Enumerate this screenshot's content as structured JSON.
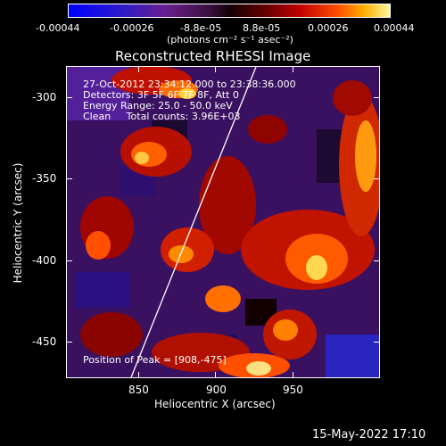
{
  "colorbar": {
    "ticks": [
      "-0.00044",
      "-0.00026",
      "-8.8e-05",
      "8.8e-05",
      "0.00026",
      "0.00044"
    ],
    "units": "(photons cm⁻² s⁻¹ asec⁻²)"
  },
  "title": "Reconstructed RHESSI Image",
  "info": {
    "line1": "27-Oct-2012 23:34:12.000 to 23:38:36.000",
    "line2": "Detectors: 3F 5F 6F 7F 8F, Att 0",
    "line3": "Energy Range: 25.0 - 50.0 keV",
    "line4": "Clean     Total counts: 3.96E+03",
    "peak": "Position of Peak = [908,-475]"
  },
  "axes": {
    "xlabel": "Heliocentric X (arcsec)",
    "ylabel": "Heliocentric Y (arcsec)",
    "xticks": [
      "850",
      "900",
      "950"
    ],
    "yticks": [
      "-300",
      "-350",
      "-400",
      "-450"
    ]
  },
  "footer_date": "15-May-2022 17:10"
}
